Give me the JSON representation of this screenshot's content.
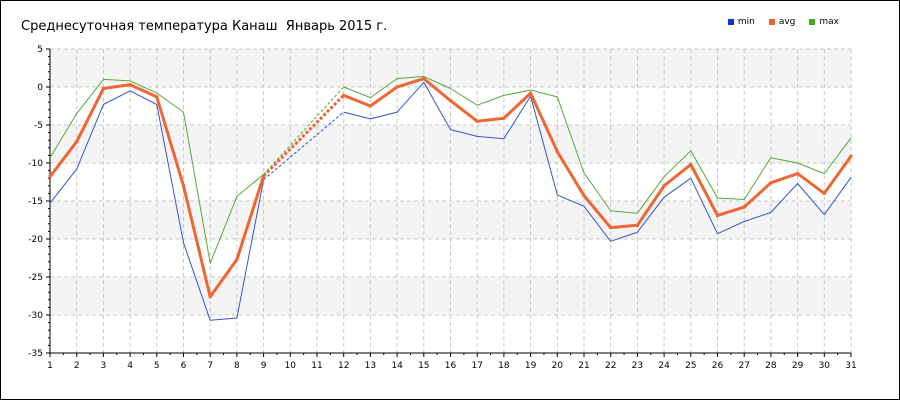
{
  "chart_data": {
    "type": "line",
    "title": "Среднесуточная температура Канаш  Январь 2015 г.",
    "x": [
      1,
      2,
      3,
      4,
      5,
      6,
      7,
      8,
      9,
      10,
      11,
      12,
      13,
      14,
      15,
      16,
      17,
      18,
      19,
      20,
      21,
      22,
      23,
      24,
      25,
      26,
      27,
      28,
      29,
      30,
      31
    ],
    "x_tick_labels": [
      "1",
      "2",
      "3",
      "4",
      "5",
      "6",
      "7",
      "8",
      "9",
      "10",
      "11",
      "12",
      "13",
      "14",
      "15",
      "16",
      "17",
      "18",
      "19",
      "20",
      "21",
      "22",
      "23",
      "24",
      "25",
      "26",
      "27",
      "28",
      "29",
      "30",
      "31"
    ],
    "y_ticks": [
      5,
      0,
      -5,
      -10,
      -15,
      -20,
      -25,
      -30,
      -35
    ],
    "y_tick_labels": [
      "5",
      "0",
      "-5",
      "-10",
      "-15",
      "-20",
      "-25",
      "-30",
      "-35"
    ],
    "xlim": [
      1,
      31
    ],
    "ylim": [
      -35,
      5
    ],
    "grid": true,
    "legend_position": "top-right",
    "missing_days_dashed": [
      9,
      12
    ],
    "series": [
      {
        "name": "min",
        "color": "#3355cc",
        "legend_color": "#1133dd",
        "values": [
          -15.3,
          -10.8,
          -2.3,
          -0.5,
          -2.3,
          -20.5,
          -30.7,
          -30.4,
          -12.2,
          null,
          null,
          -3.3,
          -4.2,
          -3.3,
          0.6,
          -5.6,
          -6.5,
          -6.8,
          -1.2,
          -14.2,
          -15.7,
          -20.3,
          -19.1,
          -14.5,
          -12.0,
          -19.3,
          -17.7,
          -16.5,
          -12.7,
          -16.8,
          -11.9
        ]
      },
      {
        "name": "avg",
        "color": "#ee6633",
        "legend_color": "#ee6633",
        "values": [
          -11.8,
          -7.2,
          -0.2,
          0.3,
          -1.3,
          -13.0,
          -27.6,
          -22.7,
          -11.7,
          null,
          null,
          -1.1,
          -2.5,
          0.0,
          1.1,
          -1.8,
          -4.5,
          -4.1,
          -0.8,
          -8.5,
          -14.3,
          -18.5,
          -18.2,
          -13.0,
          -10.2,
          -16.9,
          -15.8,
          -12.6,
          -11.4,
          -14.0,
          -9.1
        ]
      },
      {
        "name": "max",
        "color": "#55aa33",
        "legend_color": "#44aa22",
        "values": [
          -9.3,
          -3.5,
          1.0,
          0.8,
          -0.8,
          -3.3,
          -23.2,
          -14.4,
          -11.5,
          null,
          null,
          0.0,
          -1.4,
          1.1,
          1.4,
          -0.2,
          -2.4,
          -1.1,
          -0.4,
          -1.3,
          -11.3,
          -16.3,
          -16.6,
          -11.8,
          -8.4,
          -14.6,
          -14.8,
          -9.3,
          -10.0,
          -11.4,
          -6.7
        ]
      }
    ]
  }
}
